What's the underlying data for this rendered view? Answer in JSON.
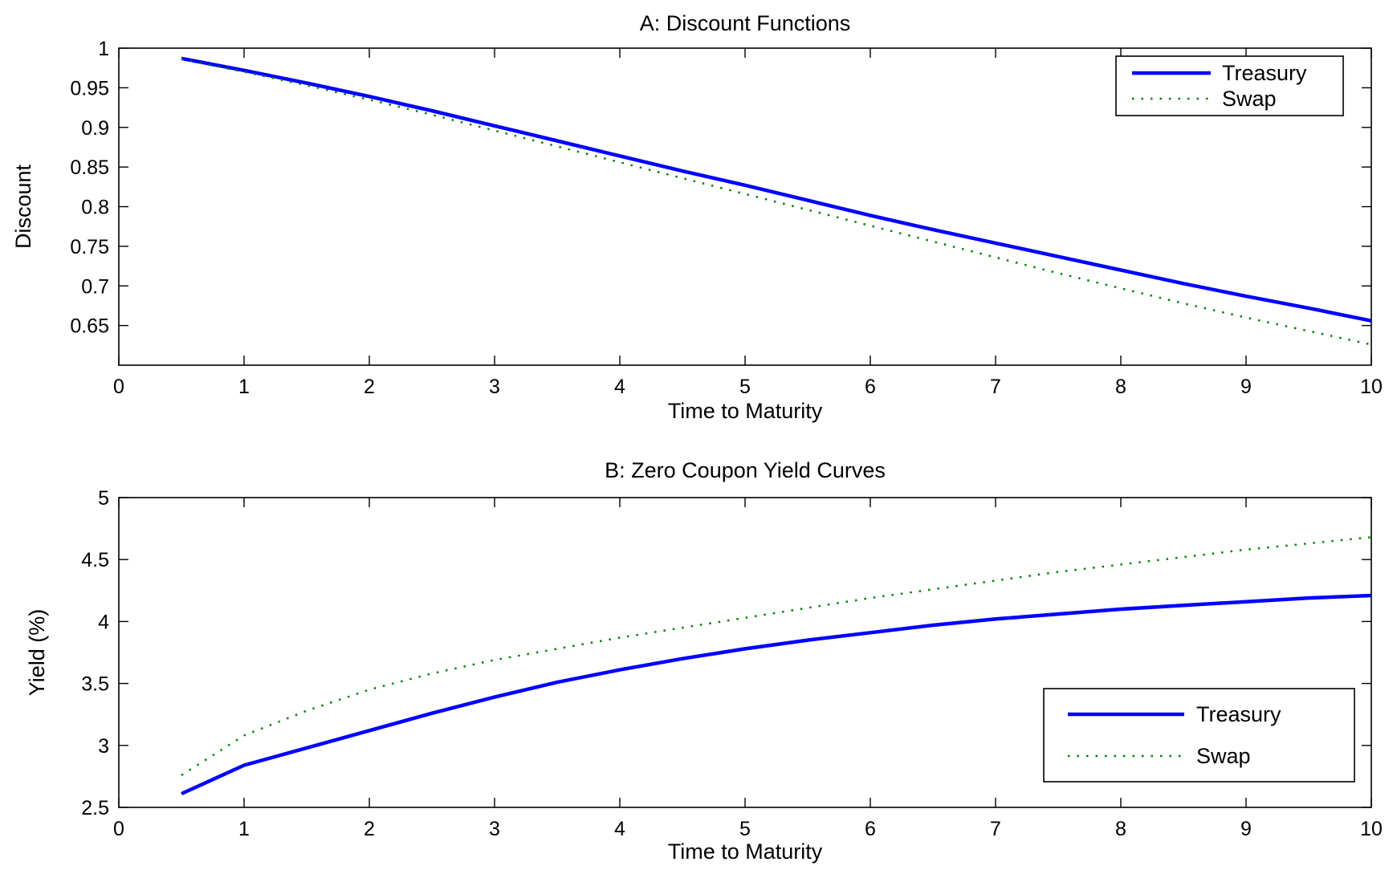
{
  "colors": {
    "treasury": "#0000ff",
    "swap": "#008000",
    "axes": "#000000",
    "background": "#ffffff"
  },
  "chart_data": [
    {
      "type": "line",
      "title": "A: Discount Functions",
      "xlabel": "Time to Maturity",
      "ylabel": "Discount",
      "xlim": [
        0,
        10
      ],
      "ylim": [
        0.6,
        1.0
      ],
      "x_ticks": [
        "0",
        "1",
        "2",
        "3",
        "4",
        "5",
        "6",
        "7",
        "8",
        "9",
        "10"
      ],
      "y_ticks": [
        "0.65",
        "0.7",
        "0.75",
        "0.8",
        "0.85",
        "0.9",
        "0.95",
        "1"
      ],
      "grid": false,
      "legend": "top-right",
      "x": [
        0.5,
        1,
        1.5,
        2,
        2.5,
        3,
        3.5,
        4,
        4.5,
        5,
        5.5,
        6,
        6.5,
        7,
        7.5,
        8,
        8.5,
        9,
        9.5,
        10
      ],
      "series": [
        {
          "name": "Treasury",
          "style": "solid",
          "values": [
            0.987,
            0.972,
            0.956,
            0.939,
            0.921,
            0.902,
            0.883,
            0.864,
            0.845,
            0.827,
            0.808,
            0.789,
            0.771,
            0.754,
            0.737,
            0.72,
            0.703,
            0.687,
            0.672,
            0.656
          ]
        },
        {
          "name": "Swap",
          "style": "dotted",
          "values": [
            0.986,
            0.97,
            0.953,
            0.935,
            0.916,
            0.896,
            0.876,
            0.856,
            0.836,
            0.816,
            0.796,
            0.776,
            0.756,
            0.736,
            0.716,
            0.697,
            0.678,
            0.66,
            0.643,
            0.626
          ]
        }
      ]
    },
    {
      "type": "line",
      "title": "B: Zero Coupon Yield Curves",
      "xlabel": "Time to Maturity",
      "ylabel": "Yield (%)",
      "xlim": [
        0,
        10
      ],
      "ylim": [
        2.5,
        5
      ],
      "x_ticks": [
        "0",
        "1",
        "2",
        "3",
        "4",
        "5",
        "6",
        "7",
        "8",
        "9",
        "10"
      ],
      "y_ticks": [
        "2.5",
        "3",
        "3.5",
        "4",
        "4.5",
        "5"
      ],
      "grid": false,
      "legend": "bottom-right",
      "x": [
        0.5,
        1,
        1.5,
        2,
        2.5,
        3,
        3.5,
        4,
        4.5,
        5,
        5.5,
        6,
        6.5,
        7,
        7.5,
        8,
        8.5,
        9,
        9.5,
        10
      ],
      "series": [
        {
          "name": "Treasury",
          "style": "solid",
          "values": [
            2.61,
            2.84,
            2.98,
            3.12,
            3.26,
            3.39,
            3.51,
            3.61,
            3.7,
            3.78,
            3.85,
            3.91,
            3.97,
            4.02,
            4.06,
            4.1,
            4.13,
            4.16,
            4.19,
            4.21
          ]
        },
        {
          "name": "Swap",
          "style": "dotted",
          "values": [
            2.76,
            3.08,
            3.28,
            3.45,
            3.58,
            3.69,
            3.78,
            3.87,
            3.95,
            4.03,
            4.11,
            4.19,
            4.26,
            4.33,
            4.4,
            4.46,
            4.52,
            4.58,
            4.63,
            4.68
          ]
        }
      ]
    }
  ]
}
